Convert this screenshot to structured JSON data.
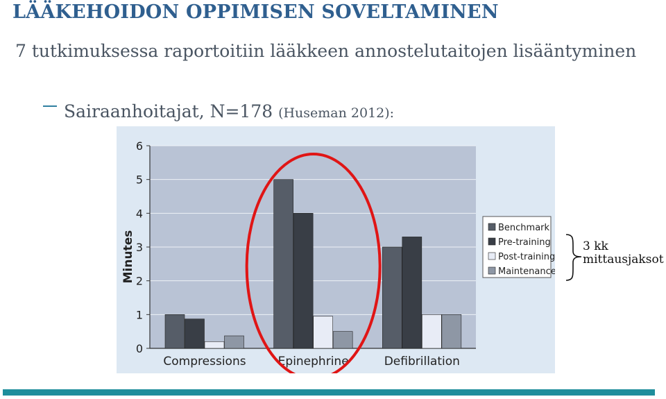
{
  "slide": {
    "title": "LÄÄKEHOIDON OPPIMISEN SOVELTAMINEN",
    "bullet1": "7 tutkimuksessa raportoitiin lääkkeen annostelutaitojen lisääntyminen",
    "bullet2_main": "Sairaanhoitajat, N=178",
    "bullet2_cite": "(Huseman 2012):",
    "brace_label_line1": "3 kk",
    "brace_label_line2": "mittausjaksot"
  },
  "colors": {
    "title": "#2f5f8f",
    "accent_bar": "#1f8e9c",
    "highlight_ellipse": "#e01515",
    "plot_background": "#b9c3d5"
  },
  "chart_data": {
    "type": "bar",
    "categories": [
      "Compressions",
      "Epinephrine",
      "Defibrillation"
    ],
    "series": [
      {
        "name": "Benchmark",
        "color": "#565d68",
        "values": [
          1.0,
          5.0,
          3.0
        ]
      },
      {
        "name": "Pre-training",
        "color": "#393e46",
        "values": [
          0.87,
          4.0,
          3.3
        ]
      },
      {
        "name": "Post-training",
        "color": "#e8ecf6",
        "values": [
          0.2,
          0.95,
          1.0
        ]
      },
      {
        "name": "Maintenance",
        "color": "#8e97a5",
        "values": [
          0.37,
          0.5,
          1.0
        ]
      }
    ],
    "ylabel": "Minutes",
    "ylim": [
      0,
      6
    ],
    "yticks": [
      0,
      1,
      2,
      3,
      4,
      5,
      6
    ],
    "legend_position": "right",
    "highlighted_category": "Epinephrine"
  }
}
